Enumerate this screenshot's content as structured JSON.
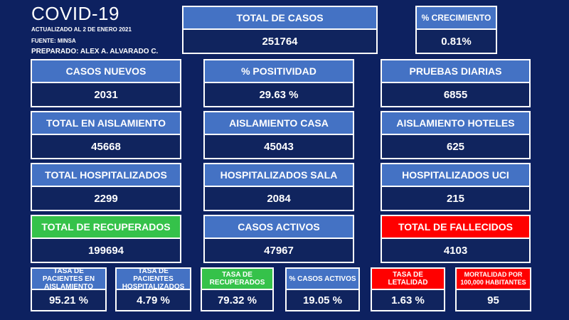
{
  "header": {
    "title": "COVID-19",
    "updated": "ACTUALIZADO AL 2 DE ENERO  2021",
    "source": "FUENTE: MINSA",
    "prepared": "PREPARADO:  ALEX A.  ALVARADO  C."
  },
  "cards": {
    "total_casos": {
      "label": "TOTAL DE CASOS",
      "value": "251764"
    },
    "crecimiento": {
      "label": "% CRECIMIENTO",
      "value": "0.81%"
    },
    "casos_nuevos": {
      "label": "CASOS NUEVOS",
      "value": "2031"
    },
    "positividad": {
      "label": "% POSITIVIDAD",
      "value": "29.63 %"
    },
    "pruebas_diarias": {
      "label": "PRUEBAS DIARIAS",
      "value": "6855"
    },
    "total_aislamiento": {
      "label": "TOTAL EN AISLAMIENTO",
      "value": "45668"
    },
    "aislamiento_casa": {
      "label": "AISLAMIENTO CASA",
      "value": "45043"
    },
    "aislamiento_hoteles": {
      "label": "AISLAMIENTO HOTELES",
      "value": "625"
    },
    "total_hospitalizados": {
      "label": "TOTAL HOSPITALIZADOS",
      "value": "2299"
    },
    "hospitalizados_sala": {
      "label": "HOSPITALIZADOS SALA",
      "value": "2084"
    },
    "hospitalizados_uci": {
      "label": "HOSPITALIZADOS UCI",
      "value": "215"
    },
    "total_recuperados": {
      "label": "TOTAL DE RECUPERADOS",
      "value": "199694"
    },
    "casos_activos": {
      "label": "CASOS ACTIVOS",
      "value": "47967"
    },
    "total_fallecidos": {
      "label": "TOTAL DE FALLECIDOS",
      "value": "4103"
    }
  },
  "rates": [
    {
      "label": "TASA DE PACIENTES EN AISLAMIENTO",
      "value": "95.21 %",
      "color": "#4472c4"
    },
    {
      "label": "TASA DE PACIENTES HOSPITALIZADOS",
      "value": "4.79 %",
      "color": "#4472c4"
    },
    {
      "label": "TASA DE RECUPERADOS",
      "value": "79.32 %",
      "color": "#35c24a"
    },
    {
      "label": "% CASOS ACTIVOS",
      "value": "19.05 %",
      "color": "#4472c4"
    },
    {
      "label": "TASA DE LETALIDAD",
      "value": "1.63 %",
      "color": "#ff0000"
    },
    {
      "label": "MORTALIDAD POR 100,000 HABITANTES",
      "value": "95",
      "color": "#ff0000"
    }
  ],
  "colors": {
    "background": "#0d2160",
    "header_blue": "#4472c4",
    "recovered_green": "#35c24a",
    "deaths_red": "#ff0000"
  }
}
